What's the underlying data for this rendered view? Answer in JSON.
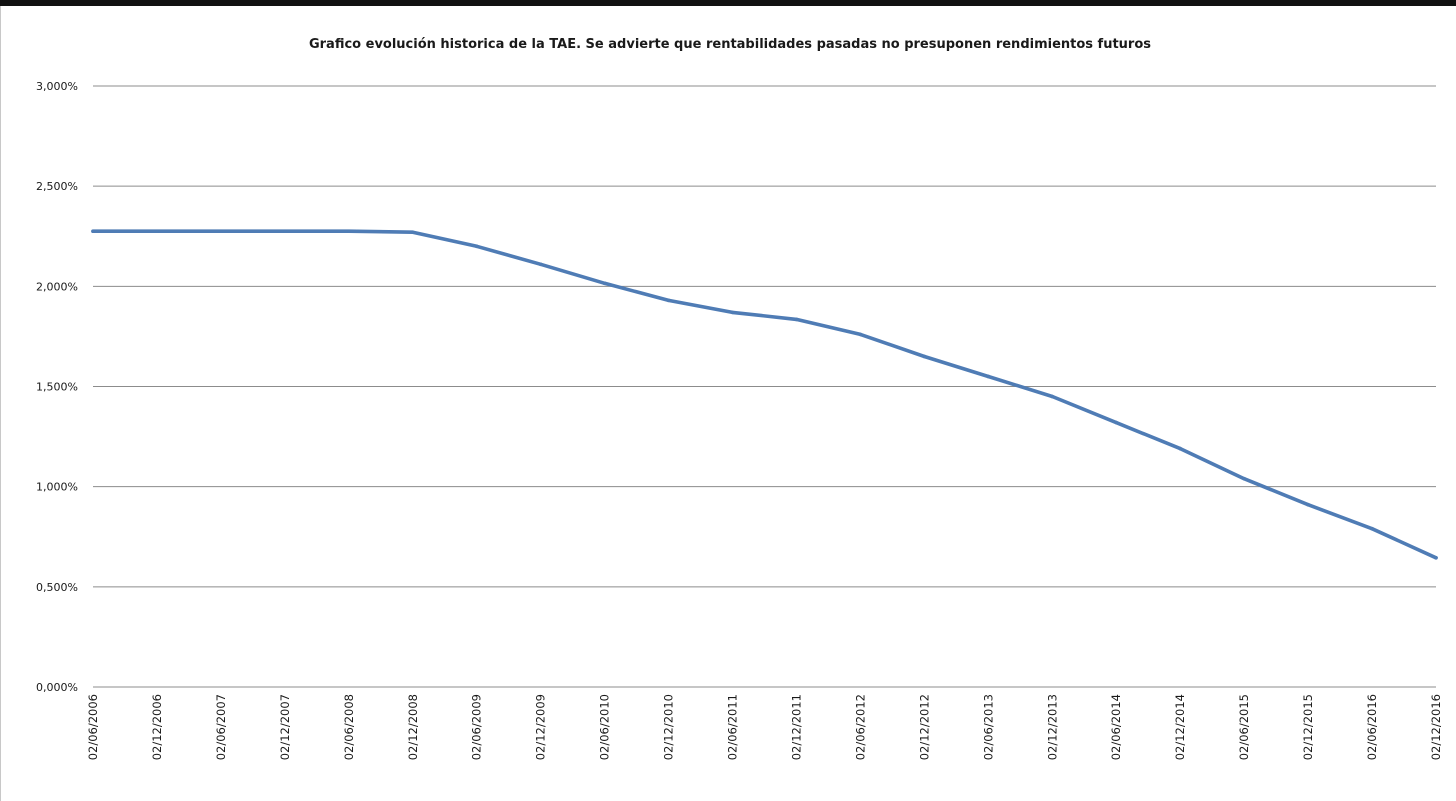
{
  "colors": {
    "series": "#4f7cb5",
    "grid": "#8c8c8c",
    "text": "#1a1a1a",
    "frame": "#111111"
  },
  "chart_data": {
    "type": "line",
    "title": "Grafico evolución historica de la TAE. Se advierte que rentabilidades pasadas no presuponen rendimientos futuros",
    "xlabel": "",
    "ylabel": "",
    "ylim": [
      0,
      3
    ],
    "y_ticks": [
      "0,000%",
      "0,500%",
      "1,000%",
      "1,500%",
      "2,000%",
      "2,500%",
      "3,000%"
    ],
    "y_tick_values": [
      0,
      0.5,
      1,
      1.5,
      2,
      2.5,
      3
    ],
    "x_ticks": [
      "02/06/2006",
      "02/12/2006",
      "02/06/2007",
      "02/12/2007",
      "02/06/2008",
      "02/12/2008",
      "02/06/2009",
      "02/12/2009",
      "02/06/2010",
      "02/12/2010",
      "02/06/2011",
      "02/12/2011",
      "02/06/2012",
      "02/12/2012",
      "02/06/2013",
      "02/12/2013",
      "02/06/2014",
      "02/12/2014",
      "02/06/2015",
      "02/12/2015",
      "02/06/2016",
      "02/12/2016"
    ],
    "grid": true,
    "legend": "none",
    "series": [
      {
        "values_unit": "percent",
        "x": [
          "02/06/2006",
          "02/12/2006",
          "02/06/2007",
          "02/12/2007",
          "02/06/2008",
          "02/12/2008",
          "02/06/2009",
          "02/12/2009",
          "02/06/2010",
          "02/12/2010",
          "02/06/2011",
          "02/12/2011",
          "02/06/2012",
          "02/12/2012",
          "02/06/2013",
          "02/12/2013",
          "02/06/2014",
          "02/12/2014",
          "02/06/2015",
          "02/12/2015",
          "02/06/2016",
          "02/12/2016"
        ],
        "values": [
          2.275,
          2.275,
          2.275,
          2.275,
          2.275,
          2.27,
          2.2,
          2.11,
          2.015,
          1.93,
          1.87,
          1.835,
          1.76,
          1.65,
          1.55,
          1.45,
          1.32,
          1.19,
          1.04,
          0.91,
          0.79,
          0.645
        ]
      }
    ]
  }
}
